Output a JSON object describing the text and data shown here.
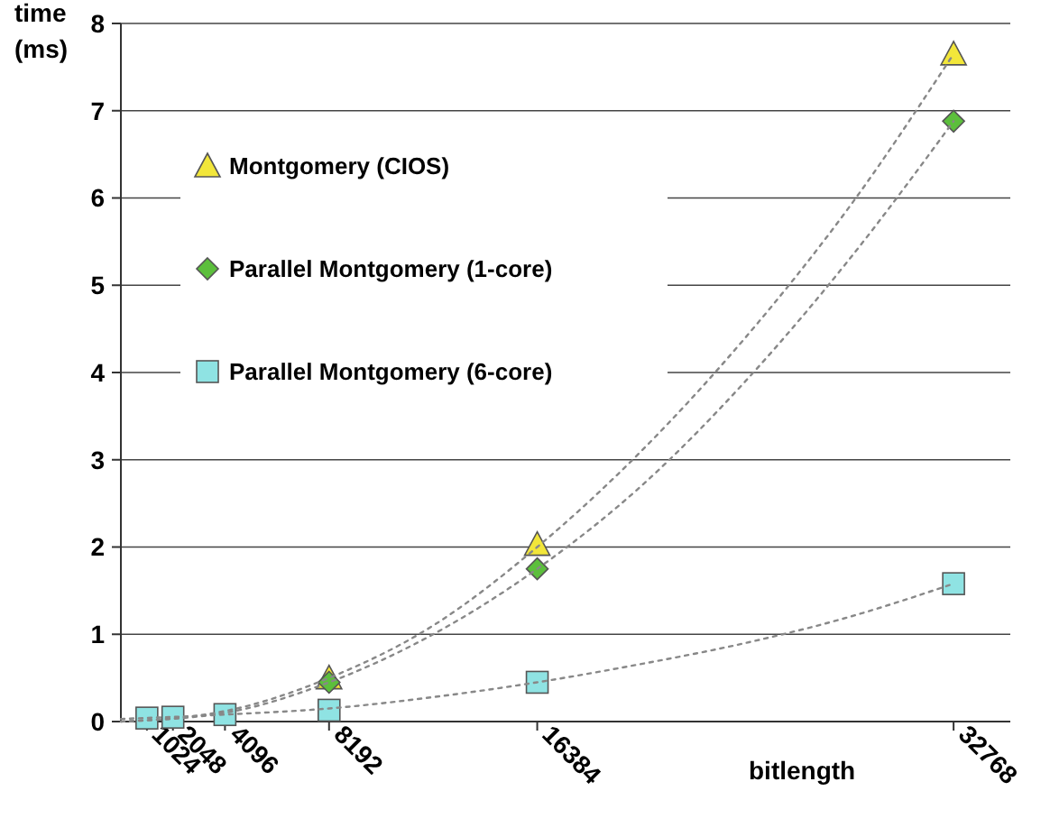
{
  "chart_data": {
    "type": "scatter",
    "xlabel": "bitlength",
    "ylabel": "time (ms)",
    "xlim": [
      0,
      35000
    ],
    "ylim": [
      0,
      8
    ],
    "xticks": [
      1024,
      2048,
      4096,
      8192,
      16384,
      32768
    ],
    "yticks": [
      0,
      1,
      2,
      3,
      4,
      5,
      6,
      7,
      8
    ],
    "grid": "y",
    "legend": "top left",
    "series": [
      {
        "name": "Montgomery (CIOS)",
        "color": "#f2e63a",
        "marker": "triangle",
        "x": [
          8192,
          16384,
          32768
        ],
        "values": [
          0.5,
          2.03,
          7.65
        ]
      },
      {
        "name": "Parallel Montgomery (1-core)",
        "color": "#5cbf3c",
        "marker": "diamond",
        "x": [
          8192,
          16384,
          32768
        ],
        "values": [
          0.45,
          1.75,
          6.88
        ]
      },
      {
        "name": "Parallel Montgomery (6-core)",
        "color": "#8fe3e3",
        "marker": "square",
        "x": [
          1024,
          2048,
          4096,
          8192,
          16384,
          32768
        ],
        "values": [
          0.04,
          0.05,
          0.08,
          0.13,
          0.45,
          1.58
        ]
      },
      {
        "type": "line",
        "color": "#888888",
        "line_style": "dotted",
        "marker": "none",
        "x": [
          0,
          4096,
          8192,
          12288,
          16384,
          20480,
          24576,
          28672,
          32768
        ],
        "values": [
          0,
          0.12,
          0.5,
          1.1,
          2.0,
          3.1,
          4.4,
          5.9,
          7.65
        ]
      },
      {
        "type": "line",
        "color": "#888888",
        "line_style": "dotted",
        "marker": "none",
        "x": [
          0,
          4096,
          8192,
          12288,
          16384,
          20480,
          24576,
          28672,
          32768
        ],
        "values": [
          0,
          0.1,
          0.45,
          1.0,
          1.75,
          2.7,
          3.9,
          5.3,
          6.88
        ]
      },
      {
        "type": "line",
        "color": "#888888",
        "line_style": "dotted",
        "marker": "none",
        "x": [
          0,
          4096,
          8192,
          12288,
          16384,
          20480,
          24576,
          28672,
          32768
        ],
        "values": [
          0.03,
          0.08,
          0.15,
          0.28,
          0.45,
          0.66,
          0.9,
          1.2,
          1.58
        ]
      }
    ]
  }
}
